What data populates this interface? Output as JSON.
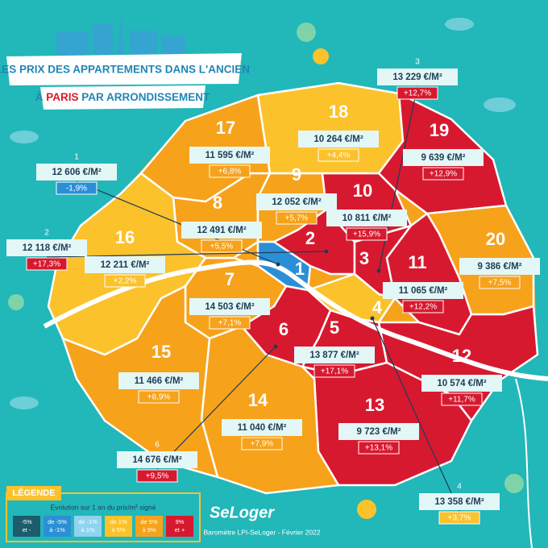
{
  "header": {
    "title_line1": "LES PRIX DES APPARTEMENTS DANS L'ANCIEN",
    "title_line2_a": "À",
    "title_line2_b": "PARIS",
    "title_line2_c": "PAR ARRONDISSEMENT"
  },
  "arrondissements": [
    {
      "number": "1",
      "price": "12 606 €/M²",
      "change": "-1,9%",
      "color": "#2b8fd6"
    },
    {
      "number": "2",
      "price": "12 118 €/M²",
      "change": "+17,3%",
      "color": "#d7192f"
    },
    {
      "number": "3",
      "price": "13 229 €/M²",
      "change": "+12,7%",
      "color": "#d7192f"
    },
    {
      "number": "4",
      "price": "13 358 €/M²",
      "change": "+3,7%",
      "color": "#fcc22c"
    },
    {
      "number": "5",
      "price": "13 877 €/M²",
      "change": "+17,1%",
      "color": "#d7192f"
    },
    {
      "number": "6",
      "price": "14 676 €/M²",
      "change": "+9,5%",
      "color": "#d7192f"
    },
    {
      "number": "7",
      "price": "14 503 €/M²",
      "change": "+7,1%",
      "color": "#f7a21b"
    },
    {
      "number": "8",
      "price": "12 491 €/M²",
      "change": "+5,5%",
      "color": "#f7a21b"
    },
    {
      "number": "9",
      "price": "12 052 €/M²",
      "change": "+5,7%",
      "color": "#f7a21b"
    },
    {
      "number": "10",
      "price": "10 811 €/M²",
      "change": "+15,9%",
      "color": "#d7192f"
    },
    {
      "number": "11",
      "price": "11 065 €/M²",
      "change": "+12,2%",
      "color": "#d7192f"
    },
    {
      "number": "12",
      "price": "10 574 €/M²",
      "change": "+11,7%",
      "color": "#d7192f"
    },
    {
      "number": "13",
      "price": "9 723 €/M²",
      "change": "+13,1%",
      "color": "#d7192f"
    },
    {
      "number": "14",
      "price": "11 040 €/M²",
      "change": "+7,9%",
      "color": "#f7a21b"
    },
    {
      "number": "15",
      "price": "11 466 €/M²",
      "change": "+8,9%",
      "color": "#f7a21b"
    },
    {
      "number": "16",
      "price": "12 211 €/M²",
      "change": "+2,2%",
      "color": "#fcc22c"
    },
    {
      "number": "17",
      "price": "11 595 €/M²",
      "change": "+6,8%",
      "color": "#f7a21b"
    },
    {
      "number": "18",
      "price": "10 264 €/M²",
      "change": "+4,4%",
      "color": "#fcc22c"
    },
    {
      "number": "19",
      "price": "9 639 €/M²",
      "change": "+12,9%",
      "color": "#d7192f"
    },
    {
      "number": "20",
      "price": "9 386 €/M²",
      "change": "+7,5%",
      "color": "#f7a21b"
    }
  ],
  "legend": {
    "title": "LÉGENDE",
    "subtitle": "Évolution sur 1 an du prix/m² signé",
    "items": [
      {
        "lines": [
          "-5%",
          "et -"
        ],
        "color": "#1d5c6b"
      },
      {
        "lines": [
          "de -5%",
          "à -1%"
        ],
        "color": "#2b8fd6"
      },
      {
        "lines": [
          "de -1%",
          "à 1%"
        ],
        "color": "#8fd3ef"
      },
      {
        "lines": [
          "de 1%",
          "à 5%"
        ],
        "color": "#fcc22c"
      },
      {
        "lines": [
          "de 5%",
          "à 9%"
        ],
        "color": "#f7a21b"
      },
      {
        "lines": [
          "9%",
          "et +"
        ],
        "color": "#d7192f"
      }
    ]
  },
  "footer": {
    "brand": "SeLoger",
    "source": "Baromètre LPI-SeLoger - Février 2022"
  }
}
